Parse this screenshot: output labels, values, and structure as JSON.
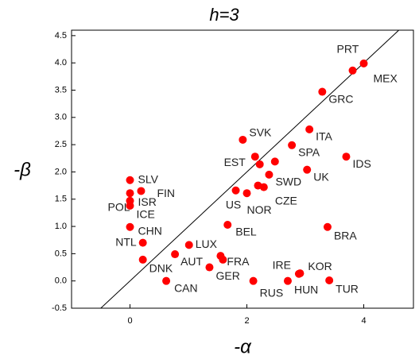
{
  "chart_data": {
    "type": "scatter",
    "title": "h=3",
    "x_label": "-α",
    "y_label": "-β",
    "color": "#ff0000",
    "xlim": [
      -1,
      4.85
    ],
    "ylim": [
      -0.5,
      4.6
    ],
    "xticks": [
      0,
      2,
      4
    ],
    "yticks": [
      {
        "value": -0.5,
        "label": "-0.5"
      },
      {
        "value": 0,
        "label": "0.0"
      },
      {
        "value": 0.5,
        "label": "0.5"
      },
      {
        "value": 1,
        "label": "1.0"
      },
      {
        "value": 1.5,
        "label": "1.5"
      },
      {
        "value": 2,
        "label": "2.0"
      },
      {
        "value": 2.5,
        "label": "2.5"
      },
      {
        "value": 3,
        "label": "3.0"
      },
      {
        "value": 3.5,
        "label": "3.5"
      },
      {
        "value": 4,
        "label": "4.0"
      },
      {
        "value": 4.5,
        "label": "4.5"
      }
    ],
    "labels": [
      "PRT",
      "MEX",
      "GRC",
      "SVK",
      "ITA",
      "SPA",
      "IDS",
      "UK",
      "EST",
      null,
      null,
      "SWD",
      null,
      "CZE",
      "US",
      "NOR",
      "SLV",
      "FIN",
      "ISR",
      "POL",
      "ICE",
      "CHN",
      "NTL",
      "LUX",
      "BEL",
      "BRA",
      "AUT",
      "DNK",
      "FRA",
      null,
      "GER",
      "IRE",
      "KOR",
      "HUN",
      "RUS",
      "TUR",
      "CAN"
    ],
    "x": [
      3.81,
      4.0,
      3.29,
      1.93,
      3.07,
      2.77,
      3.7,
      3.03,
      2.14,
      2.22,
      2.48,
      2.38,
      2.19,
      2.29,
      1.81,
      2.0,
      0,
      0.19,
      0,
      0,
      0,
      0,
      0.22,
      1.01,
      1.67,
      3.38,
      0.77,
      0.22,
      1.55,
      1.59,
      1.36,
      2.89,
      2.91,
      2.7,
      2.11,
      3.41,
      0.62
    ],
    "y": [
      3.86,
      3.99,
      3.47,
      2.59,
      2.78,
      2.49,
      2.28,
      2.04,
      2.28,
      2.14,
      2.19,
      1.95,
      1.75,
      1.72,
      1.66,
      1.61,
      1.85,
      1.65,
      1.61,
      1.47,
      1.38,
      0.99,
      0.7,
      0.66,
      1.03,
      0.99,
      0.49,
      0.39,
      0.46,
      0.39,
      0.25,
      0.13,
      0.14,
      0,
      0,
      0.01,
      0
    ]
  }
}
